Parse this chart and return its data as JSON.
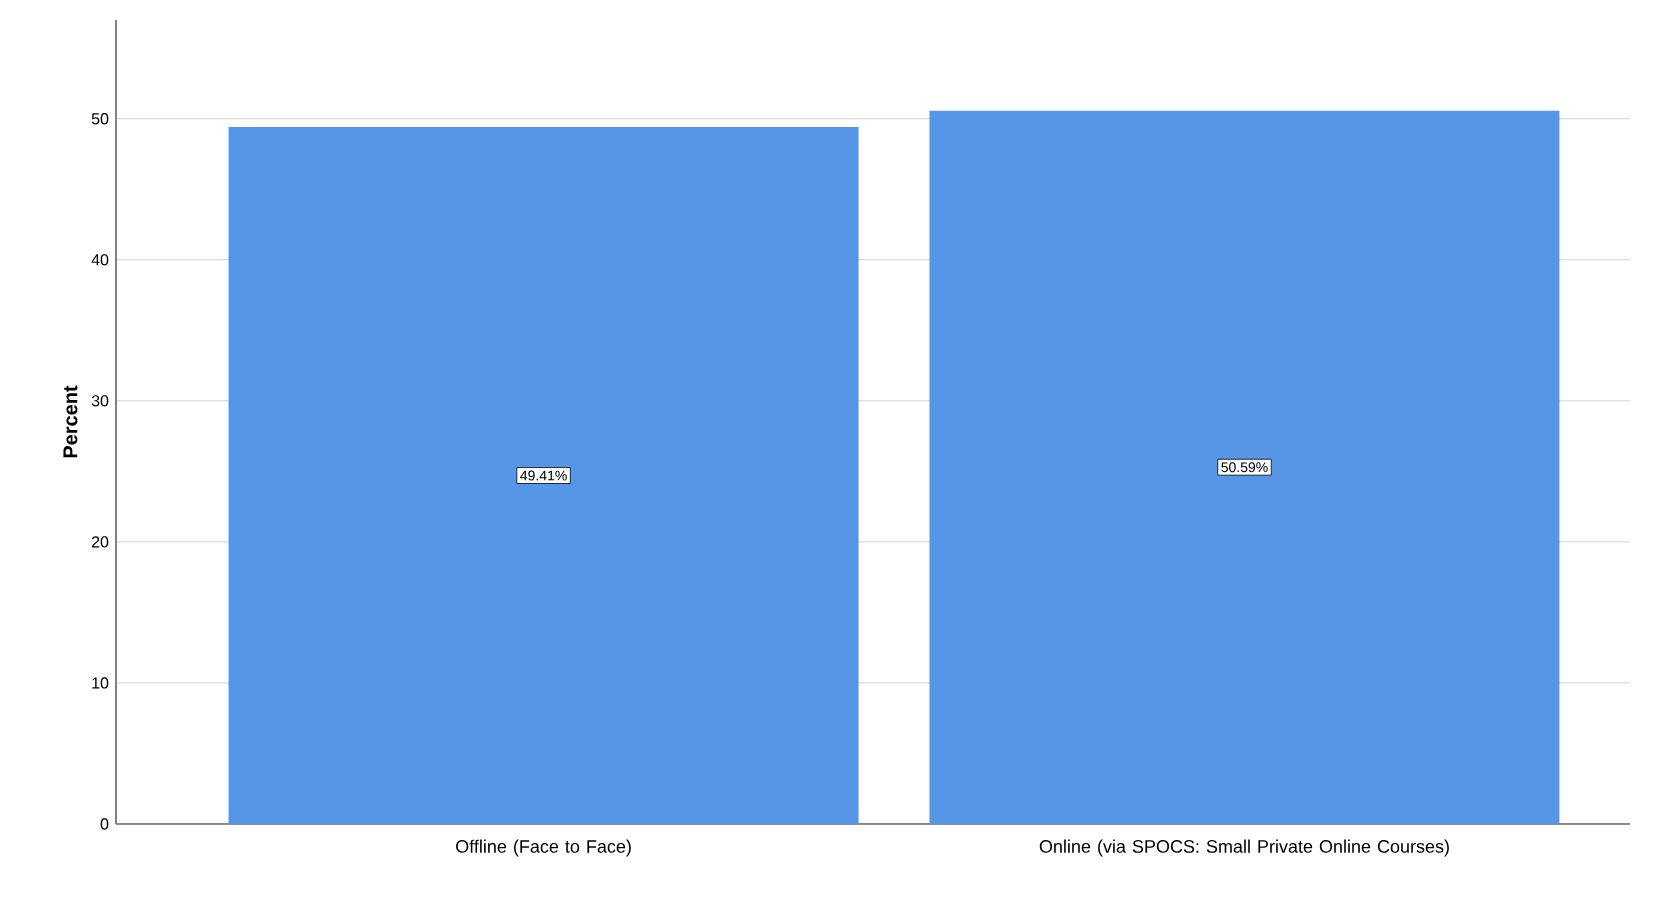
{
  "chart_data": {
    "type": "bar",
    "ylabel": "Percent",
    "categories": [
      "Offline (Face to Face)",
      "Online (via SPOCS: Small Private Online Courses)"
    ],
    "values": [
      49.41,
      50.59
    ],
    "color": "#5596e6",
    "value_labels": [
      "49.41%",
      "50.59%"
    ],
    "ylim": [
      0,
      57
    ],
    "yticks": [
      0,
      10,
      20,
      30,
      40,
      50
    ],
    "grid": "y"
  }
}
